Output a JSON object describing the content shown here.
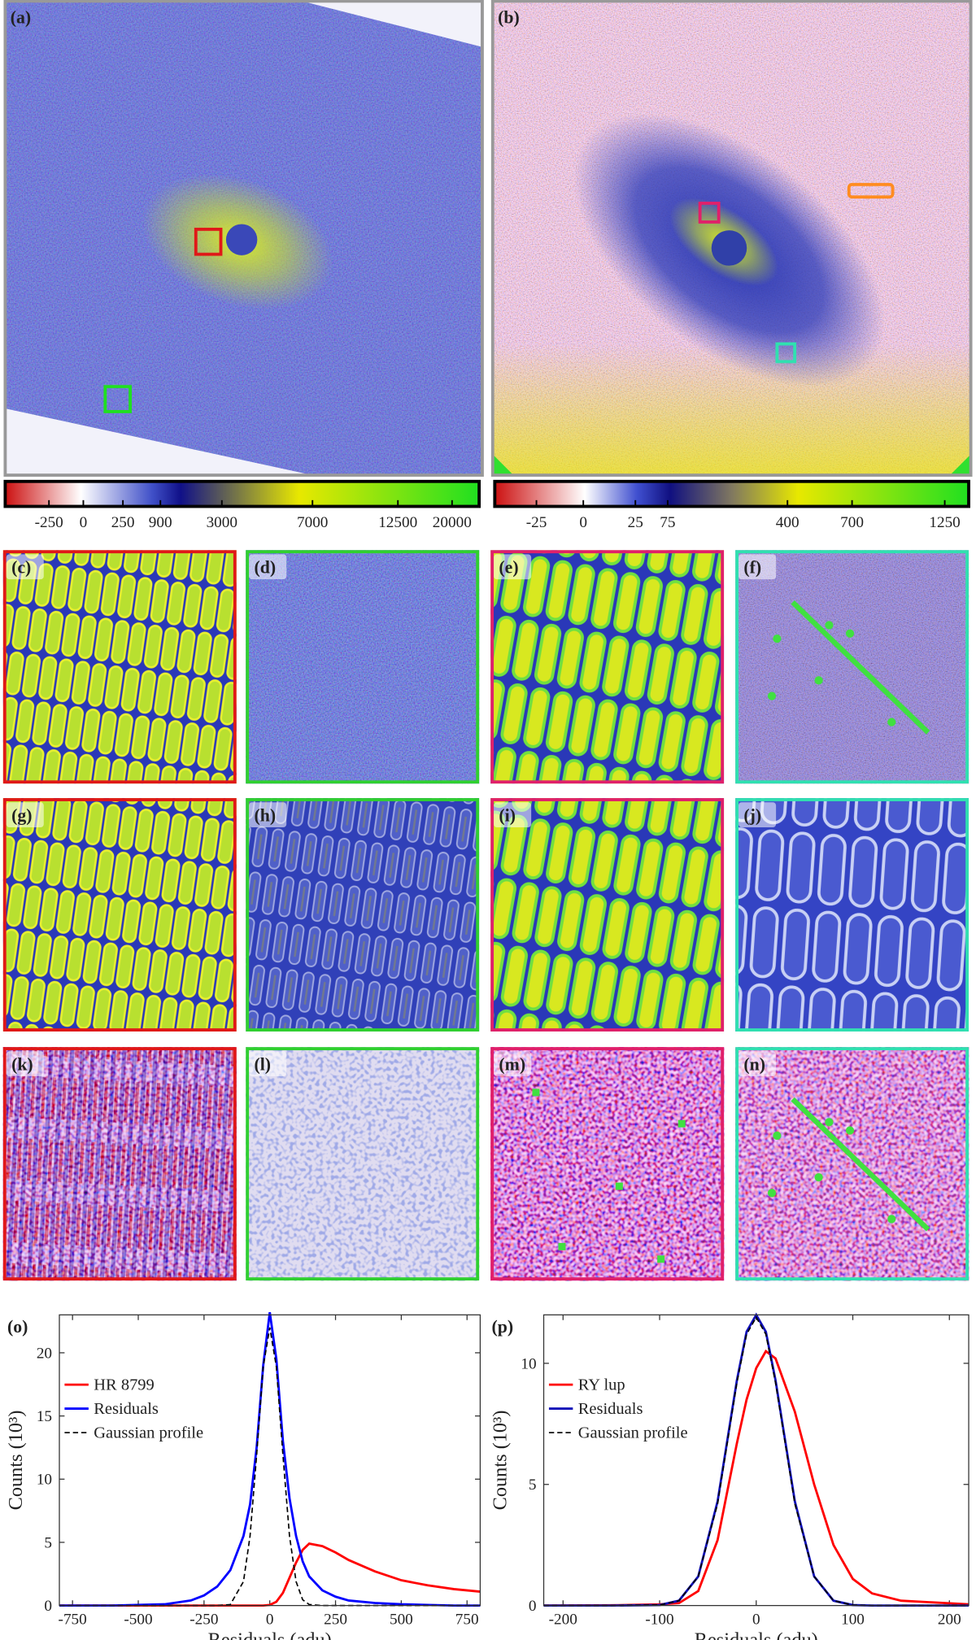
{
  "panels": {
    "labels": [
      "(a)",
      "(b)",
      "(c)",
      "(d)",
      "(e)",
      "(f)",
      "(g)",
      "(h)",
      "(i)",
      "(j)",
      "(k)",
      "(l)",
      "(m)",
      "(n)"
    ]
  },
  "colorbars": [
    {
      "ticks": [
        -250,
        0,
        250,
        900,
        3000,
        7000,
        12500,
        20000
      ]
    },
    {
      "ticks": [
        -25,
        0,
        25,
        75,
        400,
        700,
        1250
      ]
    }
  ],
  "chart_data": [
    {
      "type": "line",
      "label": "(o)",
      "xlabel": "Residuals (adu)",
      "ylabel": "Counts (10³)",
      "x": [
        -800,
        -600,
        -400,
        -300,
        -250,
        -200,
        -150,
        -100,
        -75,
        -50,
        -25,
        0,
        25,
        50,
        75,
        100,
        125,
        150,
        200,
        250,
        300,
        400,
        500,
        600,
        700,
        800
      ],
      "series": [
        {
          "name": "HR 8799",
          "color": "#ff0000",
          "values": [
            0,
            0,
            0,
            0,
            0,
            0,
            0,
            0,
            0,
            0,
            0,
            0.05,
            0.3,
            1,
            2.2,
            3.4,
            4.4,
            4.9,
            4.7,
            4.2,
            3.6,
            2.7,
            2.0,
            1.6,
            1.3,
            1.1
          ]
        },
        {
          "name": "Residuals",
          "color": "#0000ff",
          "values": [
            0,
            0,
            0.1,
            0.4,
            0.8,
            1.5,
            2.8,
            5.5,
            8,
            12.5,
            19,
            23.2,
            19.5,
            13,
            8.5,
            5.5,
            3.5,
            2.3,
            1.2,
            0.7,
            0.4,
            0.2,
            0.1,
            0.05,
            0,
            0
          ]
        },
        {
          "name": "Gaussian profile",
          "color": "#000000",
          "dashed": true,
          "values": [
            0,
            0,
            0,
            0,
            0,
            0,
            0.08,
            1.9,
            5.5,
            11.9,
            18.9,
            22,
            18.9,
            11.9,
            5.5,
            1.9,
            0.46,
            0.08,
            0,
            0,
            0,
            0,
            0,
            0,
            0,
            0
          ]
        }
      ],
      "xlim": [
        -800,
        800
      ],
      "xticks": [
        -750,
        -500,
        -250,
        0,
        250,
        500,
        750
      ],
      "ylim": [
        0,
        23
      ],
      "yticks": [
        0,
        5,
        10,
        15,
        20
      ],
      "legend": "upper left"
    },
    {
      "type": "line",
      "label": "(p)",
      "xlabel": "Residuals (adu)",
      "ylabel": "Counts (10³)",
      "x": [
        -220,
        -150,
        -100,
        -80,
        -60,
        -40,
        -20,
        -10,
        0,
        10,
        20,
        40,
        60,
        80,
        100,
        120,
        150,
        220
      ],
      "series": [
        {
          "name": "RY lup",
          "color": "#ff0000",
          "values": [
            0,
            0.01,
            0.05,
            0.1,
            0.6,
            2.7,
            6.7,
            8.5,
            9.8,
            10.5,
            10.2,
            8,
            5,
            2.5,
            1.1,
            0.5,
            0.2,
            0.05
          ]
        },
        {
          "name": "Residuals",
          "color": "#1010b8",
          "values": [
            0,
            0,
            0.02,
            0.2,
            1.2,
            4.3,
            9.3,
            11.3,
            12,
            11.3,
            9.3,
            4.3,
            1.2,
            0.2,
            0.02,
            0,
            0,
            0
          ]
        },
        {
          "name": "Gaussian profile",
          "color": "#000000",
          "dashed": true,
          "values": [
            0,
            0,
            0.02,
            0.2,
            1.2,
            4.2,
            9.2,
            11.2,
            11.9,
            11.2,
            9.2,
            4.2,
            1.2,
            0.2,
            0.02,
            0,
            0,
            0
          ]
        }
      ],
      "xlim": [
        -220,
        220
      ],
      "xticks": [
        -200,
        -100,
        0,
        100,
        200
      ],
      "ylim": [
        0,
        12
      ],
      "yticks": [
        0,
        5,
        10
      ],
      "legend": "upper left"
    }
  ]
}
